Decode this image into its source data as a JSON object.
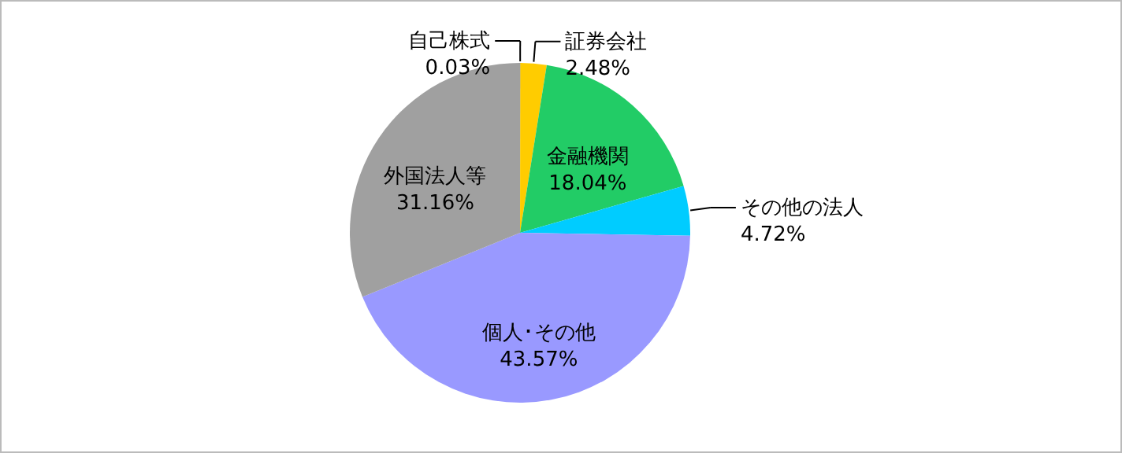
{
  "chart_data": {
    "type": "pie",
    "categories": [
      "自己株式",
      "証券会社",
      "金融機関",
      "その他の法人",
      "個人･その他",
      "外国法人等"
    ],
    "values": [
      0.03,
      2.48,
      18.04,
      4.72,
      43.57,
      31.16
    ],
    "value_labels": [
      "0.03%",
      "2.48%",
      "18.04%",
      "4.72%",
      "43.57%",
      "31.16%"
    ],
    "colors": [
      "#333333",
      "#ffcc00",
      "#22cc66",
      "#00ccff",
      "#9999ff",
      "#a0a0a0"
    ]
  }
}
